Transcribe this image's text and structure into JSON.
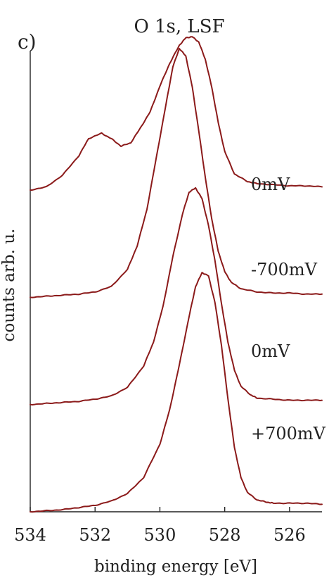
{
  "chart_data": {
    "type": "line",
    "title": "O 1s, LSF",
    "panel_label": "c)",
    "xlabel": "binding energy [eV]",
    "ylabel": "counts arb. u.",
    "xlim": [
      534,
      525
    ],
    "x_reversed": true,
    "x_ticks": [
      534,
      532,
      530,
      528,
      526
    ],
    "y_ticks_shown": false,
    "ylim": [
      0,
      4.3
    ],
    "grid": false,
    "line_color": "#8b1a1a",
    "series": [
      {
        "label": "0mV",
        "x": [
          534,
          533.5,
          533,
          532.5,
          532.2,
          531.8,
          531.5,
          531.2,
          530.9,
          530.6,
          530.3,
          530,
          529.7,
          529.4,
          529.2,
          529,
          528.8,
          528.6,
          528.4,
          528.2,
          528,
          527.7,
          527.3,
          527,
          526.5,
          526,
          525.5,
          525
        ],
        "y": [
          3.0,
          3.03,
          3.14,
          3.32,
          3.48,
          3.53,
          3.48,
          3.41,
          3.44,
          3.58,
          3.73,
          3.97,
          4.18,
          4.35,
          4.42,
          4.43,
          4.38,
          4.22,
          3.96,
          3.63,
          3.36,
          3.15,
          3.08,
          3.06,
          3.05,
          3.04,
          3.04,
          3.03
        ]
      },
      {
        "label": "-700mV",
        "x": [
          534,
          533.5,
          533,
          532.5,
          532,
          531.5,
          531,
          530.7,
          530.4,
          530.1,
          529.8,
          529.6,
          529.4,
          529.2,
          529,
          528.8,
          528.6,
          528.4,
          528.2,
          528,
          527.8,
          527.5,
          527,
          526.5,
          526,
          525.5,
          525
        ],
        "y": [
          2.0,
          2.01,
          2.02,
          2.03,
          2.05,
          2.1,
          2.26,
          2.48,
          2.82,
          3.32,
          3.82,
          4.15,
          4.32,
          4.25,
          3.96,
          3.55,
          3.12,
          2.73,
          2.43,
          2.24,
          2.14,
          2.08,
          2.05,
          2.04,
          2.04,
          2.03,
          2.03
        ]
      },
      {
        "label": "0mV",
        "x": [
          534,
          533.5,
          533,
          532.5,
          532,
          531.5,
          531,
          530.5,
          530.2,
          529.9,
          529.6,
          529.3,
          529.1,
          528.9,
          528.7,
          528.5,
          528.3,
          528.1,
          527.9,
          527.7,
          527.5,
          527.2,
          527,
          526.5,
          526,
          525.5,
          525
        ],
        "y": [
          1.0,
          1.01,
          1.02,
          1.03,
          1.05,
          1.08,
          1.16,
          1.36,
          1.58,
          1.92,
          2.38,
          2.78,
          2.98,
          3.02,
          2.92,
          2.67,
          2.34,
          1.94,
          1.58,
          1.32,
          1.17,
          1.09,
          1.06,
          1.05,
          1.04,
          1.04,
          1.04
        ]
      },
      {
        "label": "+700mV",
        "x": [
          534,
          533.5,
          533,
          532.5,
          532,
          531.5,
          531,
          530.5,
          530,
          529.7,
          529.4,
          529.1,
          528.9,
          528.7,
          528.5,
          528.3,
          528.1,
          527.9,
          527.7,
          527.5,
          527.3,
          527,
          526.7,
          526.5,
          526,
          525.5,
          525
        ],
        "y": [
          0.0,
          0.01,
          0.02,
          0.04,
          0.06,
          0.1,
          0.17,
          0.32,
          0.63,
          0.95,
          1.37,
          1.82,
          2.1,
          2.23,
          2.2,
          1.95,
          1.55,
          1.05,
          0.6,
          0.32,
          0.18,
          0.11,
          0.09,
          0.08,
          0.08,
          0.08,
          0.07
        ]
      }
    ]
  }
}
